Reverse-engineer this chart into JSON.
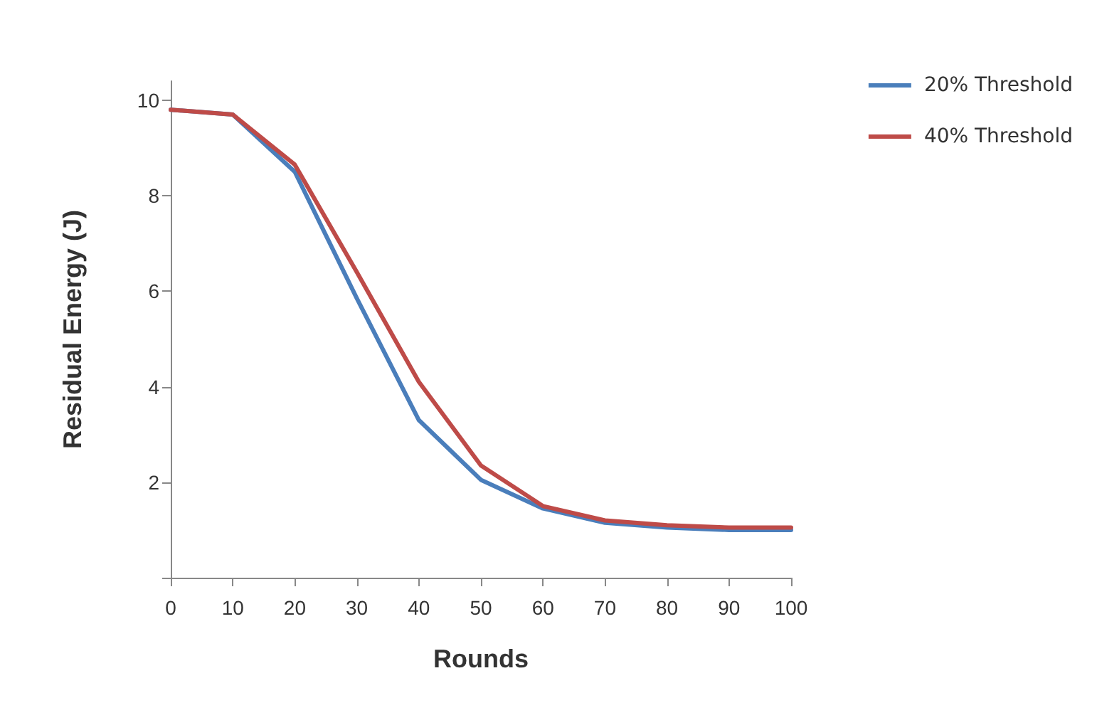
{
  "chart_data": {
    "type": "line",
    "xlabel": "Rounds",
    "ylabel": "Residual Energy (J)",
    "x": [
      0,
      10,
      20,
      30,
      40,
      50,
      60,
      70,
      80,
      90,
      100
    ],
    "series": [
      {
        "name": "20% Threshold",
        "color": "#4a7ebb",
        "values": [
          9.8,
          9.7,
          8.5,
          5.85,
          3.3,
          2.05,
          1.45,
          1.15,
          1.05,
          1.0,
          1.0
        ]
      },
      {
        "name": "40% Threshold",
        "color": "#be4b48",
        "values": [
          9.8,
          9.7,
          8.65,
          6.4,
          4.1,
          2.35,
          1.5,
          1.2,
          1.1,
          1.05,
          1.05
        ]
      }
    ],
    "xlim": [
      0,
      100
    ],
    "xticks": [
      0,
      10,
      20,
      30,
      40,
      50,
      60,
      70,
      80,
      90,
      100
    ],
    "ylim": [
      0,
      10.4
    ],
    "yticks": [
      {
        "value": 0,
        "label": null
      },
      2,
      4,
      6,
      8,
      10
    ],
    "grid": false,
    "legend": "top right",
    "marker": "none",
    "line_style": "solid"
  }
}
